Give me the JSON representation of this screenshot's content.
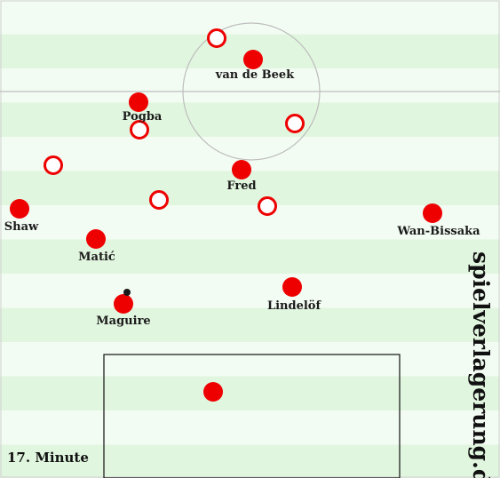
{
  "colors": {
    "stripe_light": "#f3fcf3",
    "stripe_dark": "#e1f6df",
    "team_red": "#ee0000",
    "opponent_ring": "#ee0000",
    "lines": "#bdbdbd",
    "box_line": "#222222"
  },
  "players": [
    {
      "name": "van de Beek"
    },
    {
      "name": "Pogba"
    },
    {
      "name": "Fred"
    },
    {
      "name": "Shaw"
    },
    {
      "name": "Wan-Bissaka"
    },
    {
      "name": "Matić"
    },
    {
      "name": "Lindelöf"
    },
    {
      "name": "Maguire"
    },
    {
      "name": ""
    }
  ],
  "opponents": [
    {
      "id": "opp-1"
    },
    {
      "id": "opp-2"
    },
    {
      "id": "opp-3"
    },
    {
      "id": "opp-4"
    },
    {
      "id": "opp-5"
    },
    {
      "id": "opp-6"
    }
  ],
  "ball": {
    "icon": "ball-icon"
  },
  "caption": "17. Minute",
  "watermark": "spielverlagerung.de"
}
